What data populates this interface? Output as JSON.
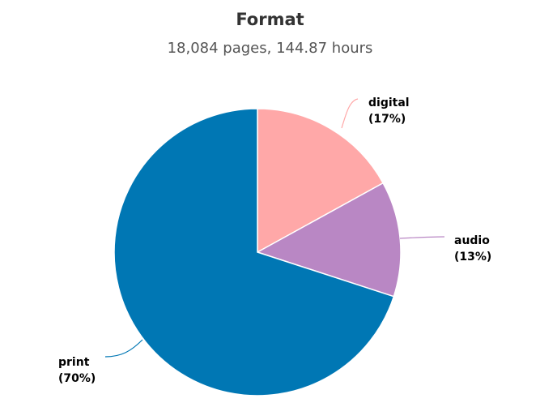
{
  "chart_data": {
    "type": "pie",
    "title": "Format",
    "subtitle": "18,084 pages, 144.87 hours",
    "slices": [
      {
        "name": "digital",
        "label": "(17%)",
        "value": 17,
        "color": "#ffa8a8"
      },
      {
        "name": "audio",
        "label": "(13%)",
        "value": 13,
        "color": "#b987c4"
      },
      {
        "name": "print",
        "label": "(70%)",
        "value": 70,
        "color": "#0077b4"
      }
    ]
  }
}
